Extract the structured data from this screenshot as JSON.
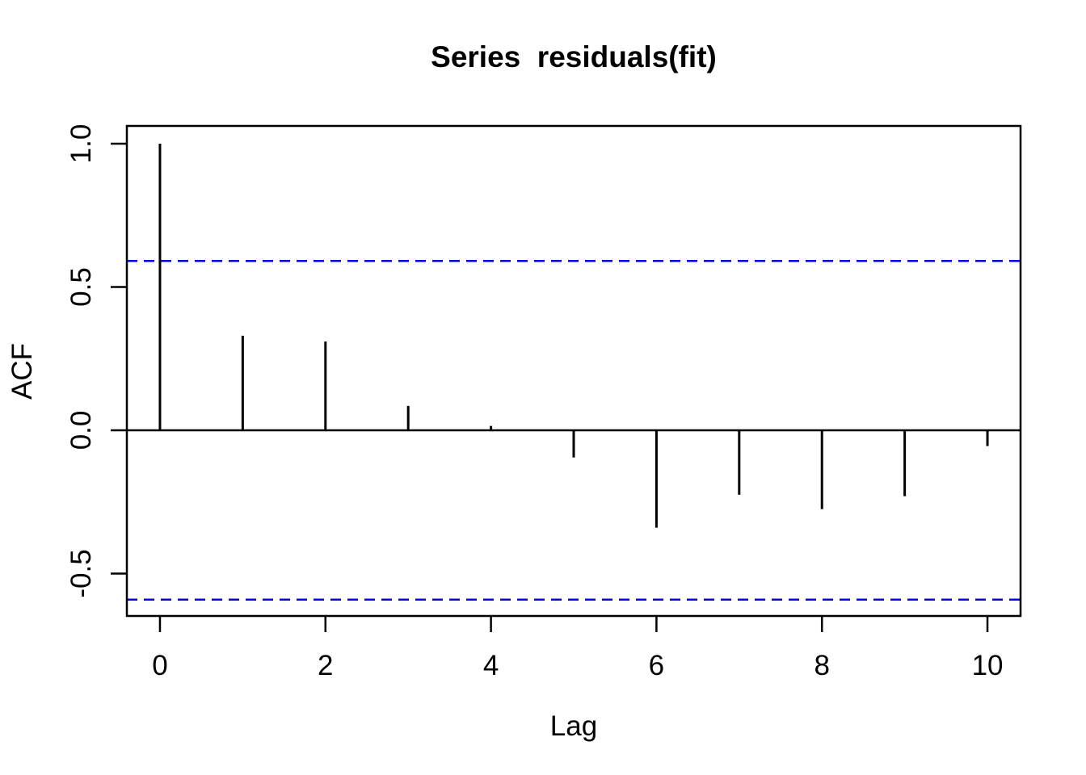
{
  "chart_data": {
    "type": "bar",
    "subtype": "acf-stem-plot",
    "title": "Series  residuals(fit)",
    "xlabel": "Lag",
    "ylabel": "ACF",
    "x": [
      0,
      1,
      2,
      3,
      4,
      5,
      6,
      7,
      8,
      9,
      10
    ],
    "values": [
      1.0,
      0.33,
      0.31,
      0.085,
      0.015,
      -0.095,
      -0.34,
      -0.225,
      -0.275,
      -0.23,
      -0.055
    ],
    "baseline": 0.0,
    "confidence_bounds": {
      "upper": 0.591,
      "lower": -0.591,
      "line_style": "dashed",
      "color": "#0000EE"
    },
    "x_ticks": [
      0,
      2,
      4,
      6,
      8,
      10
    ],
    "x_tick_labels": [
      "0",
      "2",
      "4",
      "6",
      "8",
      "10"
    ],
    "y_ticks": [
      1.0,
      0.5,
      0.0,
      -0.5
    ],
    "y_tick_labels": [
      "1.0",
      "0.5",
      "0.0",
      "-0.5"
    ],
    "xlim": [
      -0.4,
      10.4
    ],
    "ylim": [
      -0.648,
      1.062
    ],
    "grid": false,
    "legend": false,
    "colors": {
      "stem": "#000000",
      "axis": "#000000",
      "confidence": "#0000EE",
      "background": "#ffffff"
    }
  }
}
